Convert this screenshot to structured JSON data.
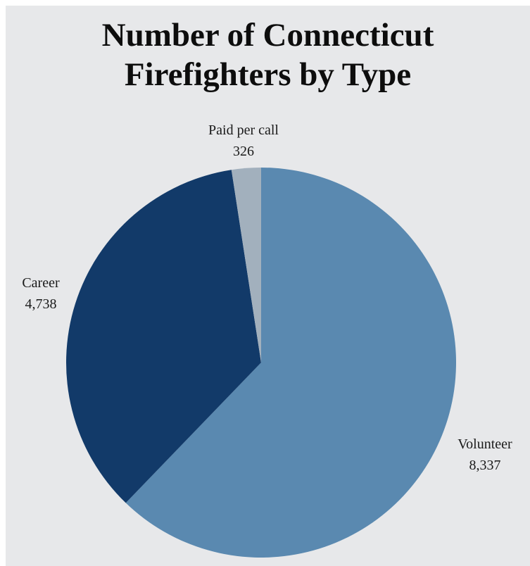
{
  "chart_data": {
    "type": "pie",
    "title_lines": [
      "Number of Connecticut",
      "Firefighters by Type"
    ],
    "start_angle_deg": 0,
    "direction": "clockwise",
    "slices": [
      {
        "name": "Volunteer",
        "value": 8337,
        "value_label": "8,337",
        "color": "#5a89b0"
      },
      {
        "name": "Career",
        "value": 4738,
        "value_label": "4,738",
        "color": "#123a69"
      },
      {
        "name": "Paid per call",
        "value": 326,
        "value_label": "326",
        "color": "#a2b0bd"
      }
    ]
  }
}
